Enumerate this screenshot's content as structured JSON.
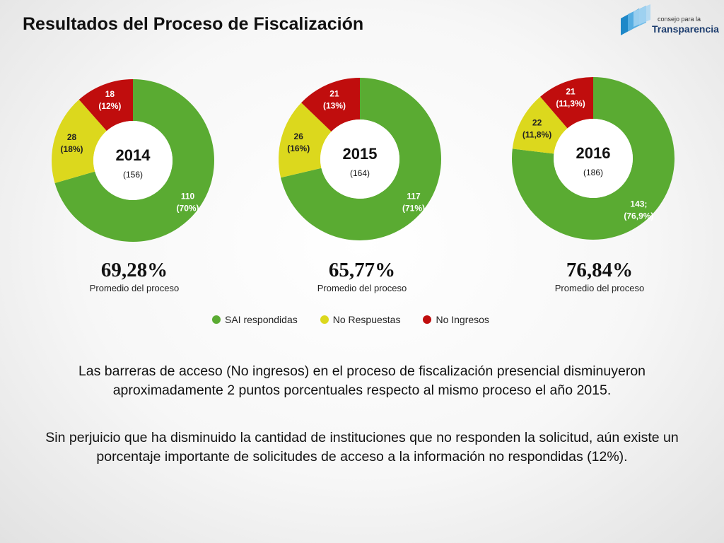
{
  "slide": {
    "title": "Resultados del Proceso de Fiscalización"
  },
  "logo": {
    "line1": "consejo para la",
    "line2": "Transparencia"
  },
  "colors": {
    "sai": "#5aab32",
    "no_respuestas": "#dcd81d",
    "no_ingresos": "#c00d0d"
  },
  "chart_data": [
    {
      "type": "pie",
      "title": "2014",
      "total": "(156)",
      "series": [
        {
          "name": "SAI respondidas",
          "value": 110,
          "label": [
            "110",
            "(70%)"
          ]
        },
        {
          "name": "No Respuestas",
          "value": 28,
          "label": [
            "28",
            "(18%)"
          ]
        },
        {
          "name": "No Ingresos",
          "value": 18,
          "label": [
            "18",
            "(12%)"
          ]
        }
      ]
    },
    {
      "type": "pie",
      "title": "2015",
      "total": "(164)",
      "series": [
        {
          "name": "SAI respondidas",
          "value": 117,
          "label": [
            "117",
            "(71%)"
          ]
        },
        {
          "name": "No Respuestas",
          "value": 26,
          "label": [
            "26",
            "(16%)"
          ]
        },
        {
          "name": "No Ingresos",
          "value": 21,
          "label": [
            "21",
            "(13%)"
          ]
        }
      ]
    },
    {
      "type": "pie",
      "title": "2016",
      "total": "(186)",
      "series": [
        {
          "name": "SAI respondidas",
          "value": 143,
          "label": [
            "143;",
            "(76,9%)"
          ]
        },
        {
          "name": "No Respuestas",
          "value": 22,
          "label": [
            "22",
            "(11,8%)"
          ]
        },
        {
          "name": "No Ingresos",
          "value": 21,
          "label": [
            "21",
            "(11,3%)"
          ]
        }
      ]
    }
  ],
  "averages": [
    {
      "value": "69,28%",
      "caption": "Promedio del proceso"
    },
    {
      "value": "65,77%",
      "caption": "Promedio del proceso"
    },
    {
      "value": "76,84%",
      "caption": "Promedio del proceso"
    }
  ],
  "legend": [
    {
      "label": "SAI respondidas"
    },
    {
      "label": "No Respuestas"
    },
    {
      "label": "No Ingresos"
    }
  ],
  "paragraphs": [
    "Las barreras de acceso (No ingresos) en el proceso de fiscalización presencial disminuyeron aproximadamente 2 puntos porcentuales respecto al mismo proceso el año 2015.",
    "Sin perjuicio que ha disminuido la cantidad de instituciones que no responden la solicitud, aún existe un porcentaje importante de solicitudes de acceso a la información no respondidas (12%)."
  ]
}
